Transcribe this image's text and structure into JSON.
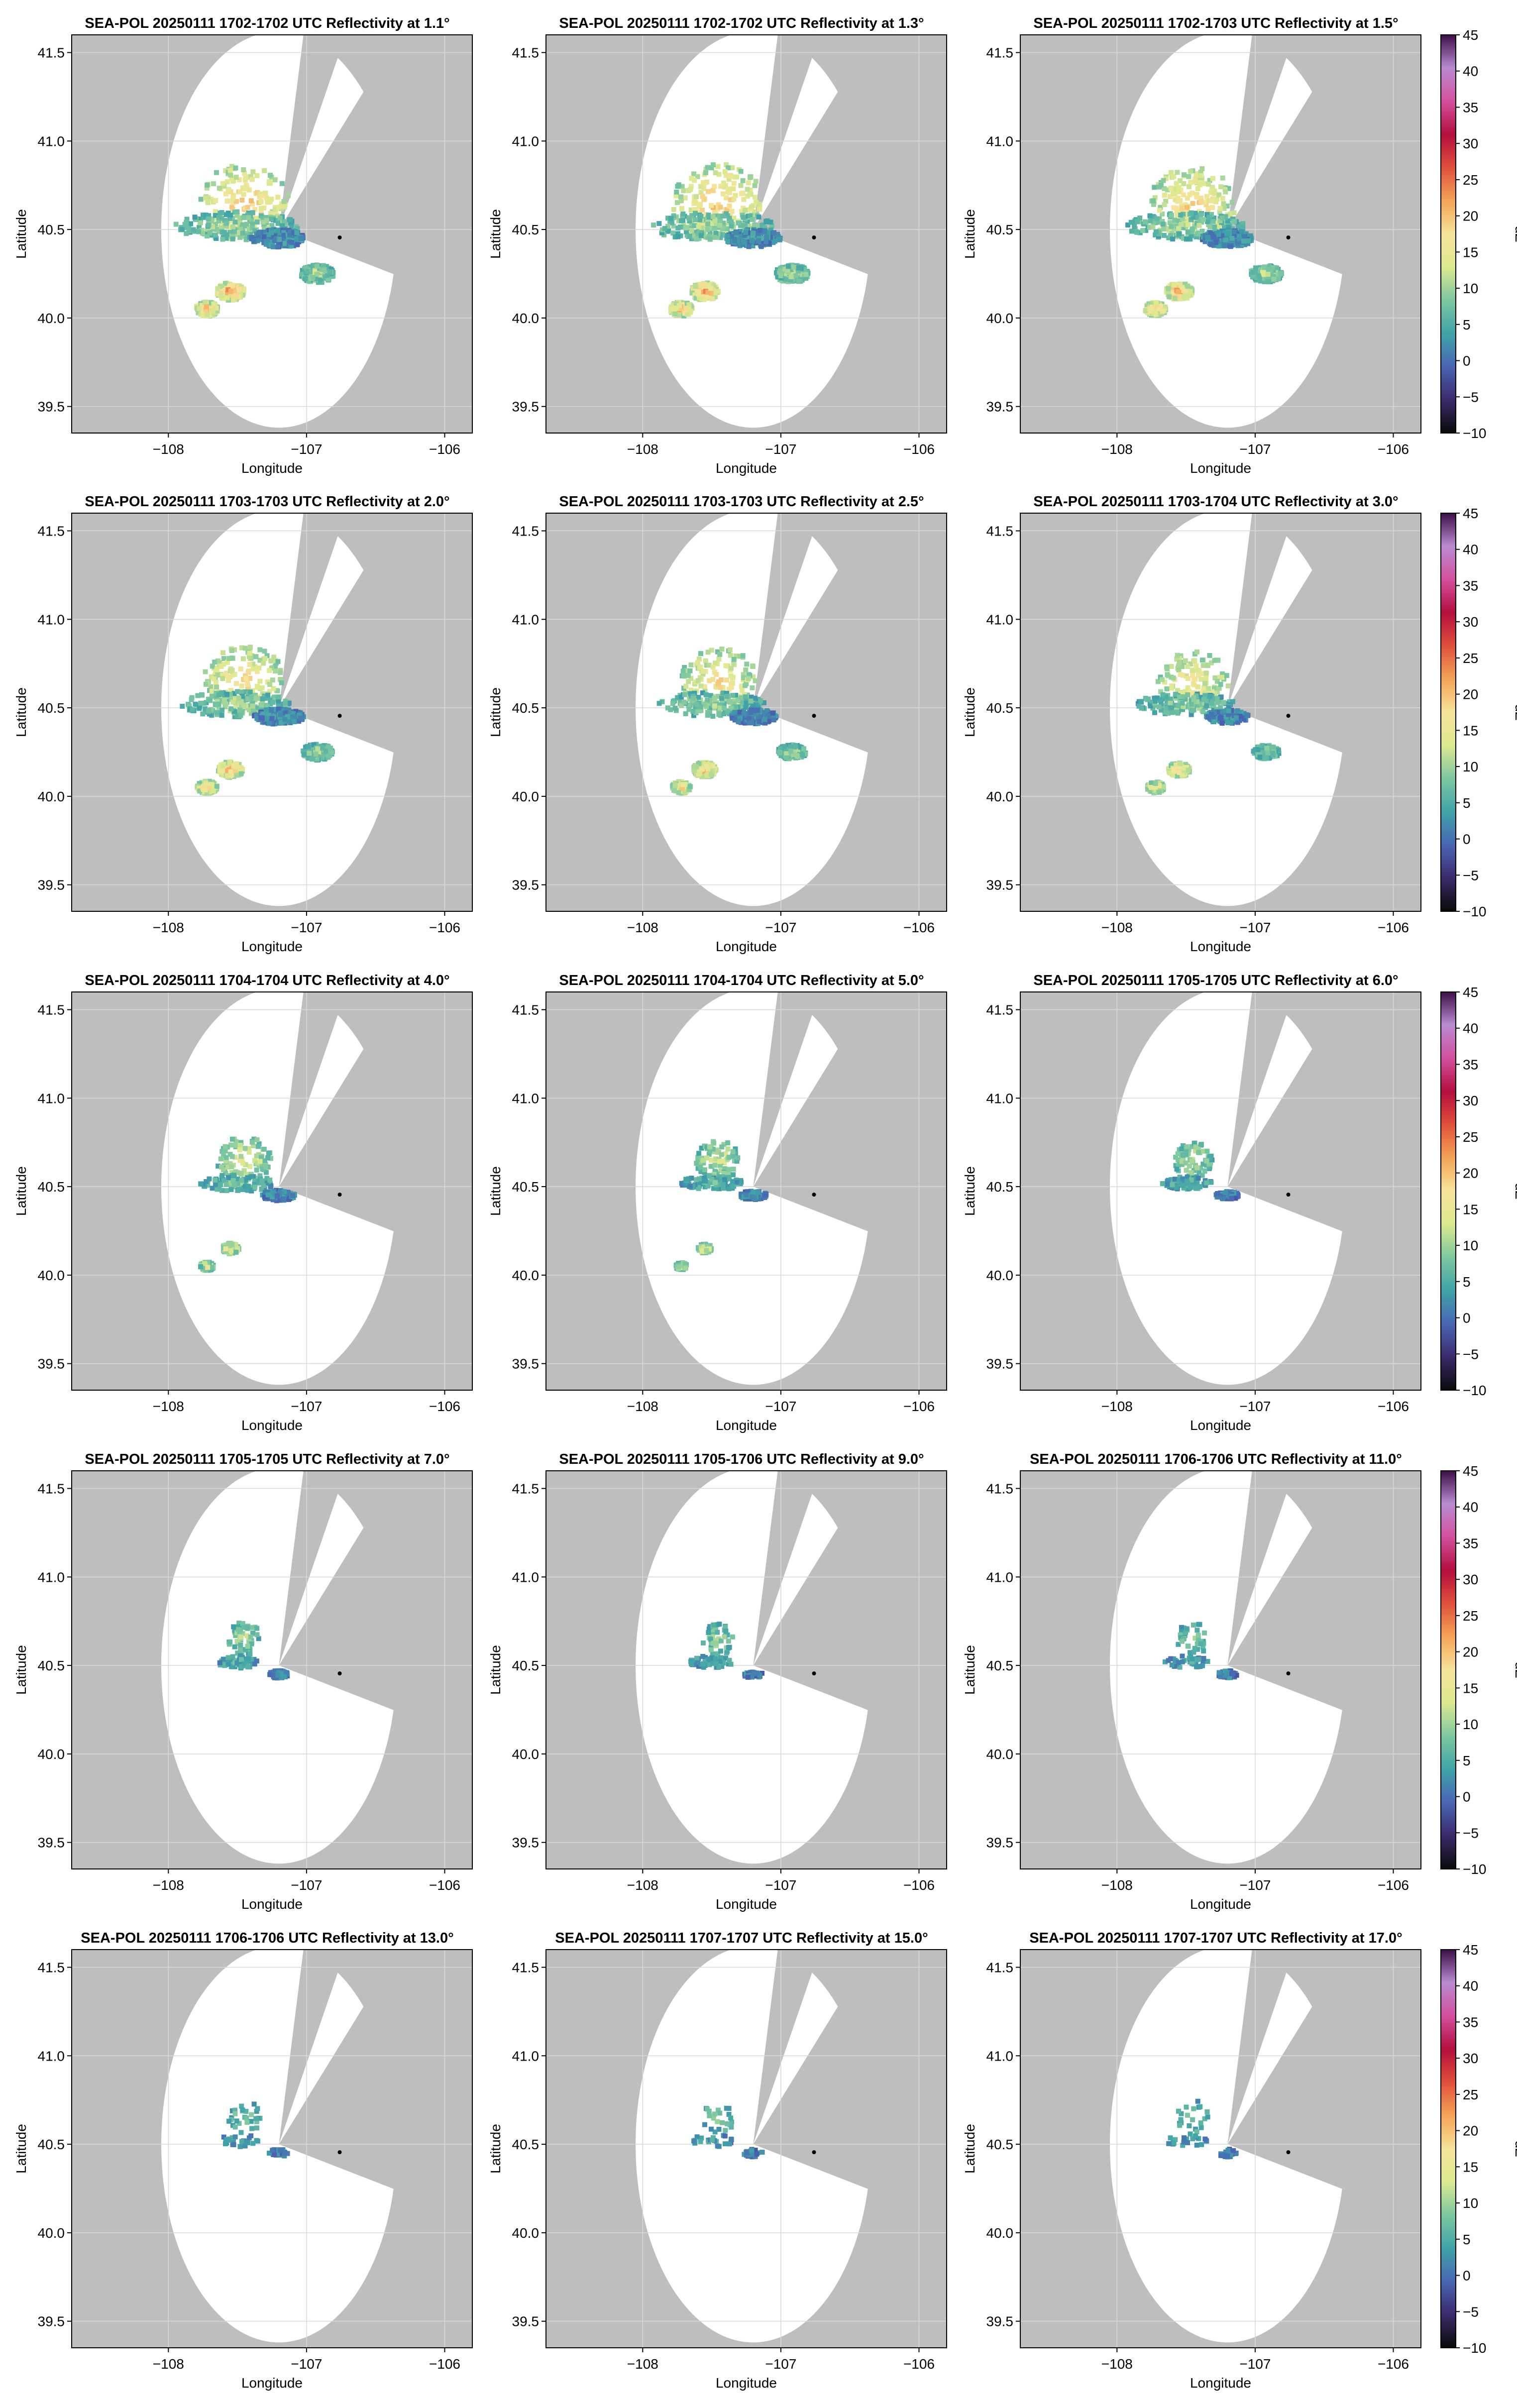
{
  "chart_data": {
    "type": "heatmap",
    "description_units": "radar reflectivity PPI panels",
    "xlabel": "Longitude",
    "ylabel": "Latitude",
    "colorbar_label": "dZ",
    "xlim": [
      -108.7,
      -105.8
    ],
    "ylim": [
      39.35,
      41.6
    ],
    "xticks": [
      -108,
      -107,
      -106
    ],
    "xtick_labels": [
      "−108",
      "−107",
      "−106"
    ],
    "yticks": [
      39.5,
      40.0,
      40.5,
      41.0,
      41.5
    ],
    "ytick_labels": [
      "39.5",
      "40.0",
      "40.5",
      "41.0",
      "41.5"
    ],
    "colorbar_ticks": [
      -10,
      -5,
      0,
      5,
      10,
      15,
      20,
      25,
      30,
      35,
      40,
      45
    ],
    "colorbar_tick_labels": [
      "−10",
      "−5",
      "0",
      "5",
      "10",
      "15",
      "20",
      "25",
      "30",
      "35",
      "40",
      "45"
    ],
    "colorbar_range": [
      -10,
      45
    ],
    "radar_site": {
      "lon": -107.2,
      "lat": 40.5
    },
    "marker_point": {
      "lon": -106.76,
      "lat": 40.455
    },
    "range_radius_deg_lat": 1.12,
    "blocked_sectors_deg_from_north": [
      [
        12,
        30
      ],
      [
        46,
        103
      ]
    ],
    "panels": [
      {
        "title": "SEA-POL 20250111 1702-1702 UTC Reflectivity at 1.1°",
        "elevation_deg": 1.1,
        "echo_scale": 1.0
      },
      {
        "title": "SEA-POL 20250111 1702-1702 UTC Reflectivity at 1.3°",
        "elevation_deg": 1.3,
        "echo_scale": 1.0
      },
      {
        "title": "SEA-POL 20250111 1702-1703 UTC Reflectivity at 1.5°",
        "elevation_deg": 1.5,
        "echo_scale": 0.95
      },
      {
        "title": "SEA-POL 20250111 1703-1703 UTC Reflectivity at 2.0°",
        "elevation_deg": 2.0,
        "echo_scale": 0.9
      },
      {
        "title": "SEA-POL 20250111 1703-1703 UTC Reflectivity at 2.5°",
        "elevation_deg": 2.5,
        "echo_scale": 0.85
      },
      {
        "title": "SEA-POL 20250111 1703-1704 UTC Reflectivity at 3.0°",
        "elevation_deg": 3.0,
        "echo_scale": 0.78
      },
      {
        "title": "SEA-POL 20250111 1704-1704 UTC Reflectivity at 4.0°",
        "elevation_deg": 4.0,
        "echo_scale": 0.6
      },
      {
        "title": "SEA-POL 20250111 1704-1704 UTC Reflectivity at 5.0°",
        "elevation_deg": 5.0,
        "echo_scale": 0.5
      },
      {
        "title": "SEA-POL 20250111 1705-1705 UTC Reflectivity at 6.0°",
        "elevation_deg": 6.0,
        "echo_scale": 0.42
      },
      {
        "title": "SEA-POL 20250111 1705-1705 UTC Reflectivity at 7.0°",
        "elevation_deg": 7.0,
        "echo_scale": 0.34
      },
      {
        "title": "SEA-POL 20250111 1705-1706 UTC Reflectivity at 9.0°",
        "elevation_deg": 9.0,
        "echo_scale": 0.27
      },
      {
        "title": "SEA-POL 20250111 1706-1706 UTC Reflectivity at 11.0°",
        "elevation_deg": 11.0,
        "echo_scale": 0.21
      },
      {
        "title": "SEA-POL 20250111 1706-1706 UTC Reflectivity at 13.0°",
        "elevation_deg": 13.0,
        "echo_scale": 0.16
      },
      {
        "title": "SEA-POL 20250111 1707-1707 UTC Reflectivity at 15.0°",
        "elevation_deg": 15.0,
        "echo_scale": 0.13
      },
      {
        "title": "SEA-POL 20250111 1707-1707 UTC Reflectivity at 17.0°",
        "elevation_deg": 17.0,
        "echo_scale": 0.12
      }
    ]
  },
  "colors": {
    "blocked": "#bebebe",
    "background": "#ffffff",
    "grid": "#d9d9d9",
    "frame": "#000000",
    "colormap_stops": [
      "#0a0a0a",
      "#3b2a6b",
      "#4a66b5",
      "#3fa3a8",
      "#7cc7a0",
      "#dce98f",
      "#f6e39a",
      "#f4a456",
      "#e0503b",
      "#b30f3e",
      "#d34f9e",
      "#b98bd0",
      "#3d0f49"
    ]
  }
}
